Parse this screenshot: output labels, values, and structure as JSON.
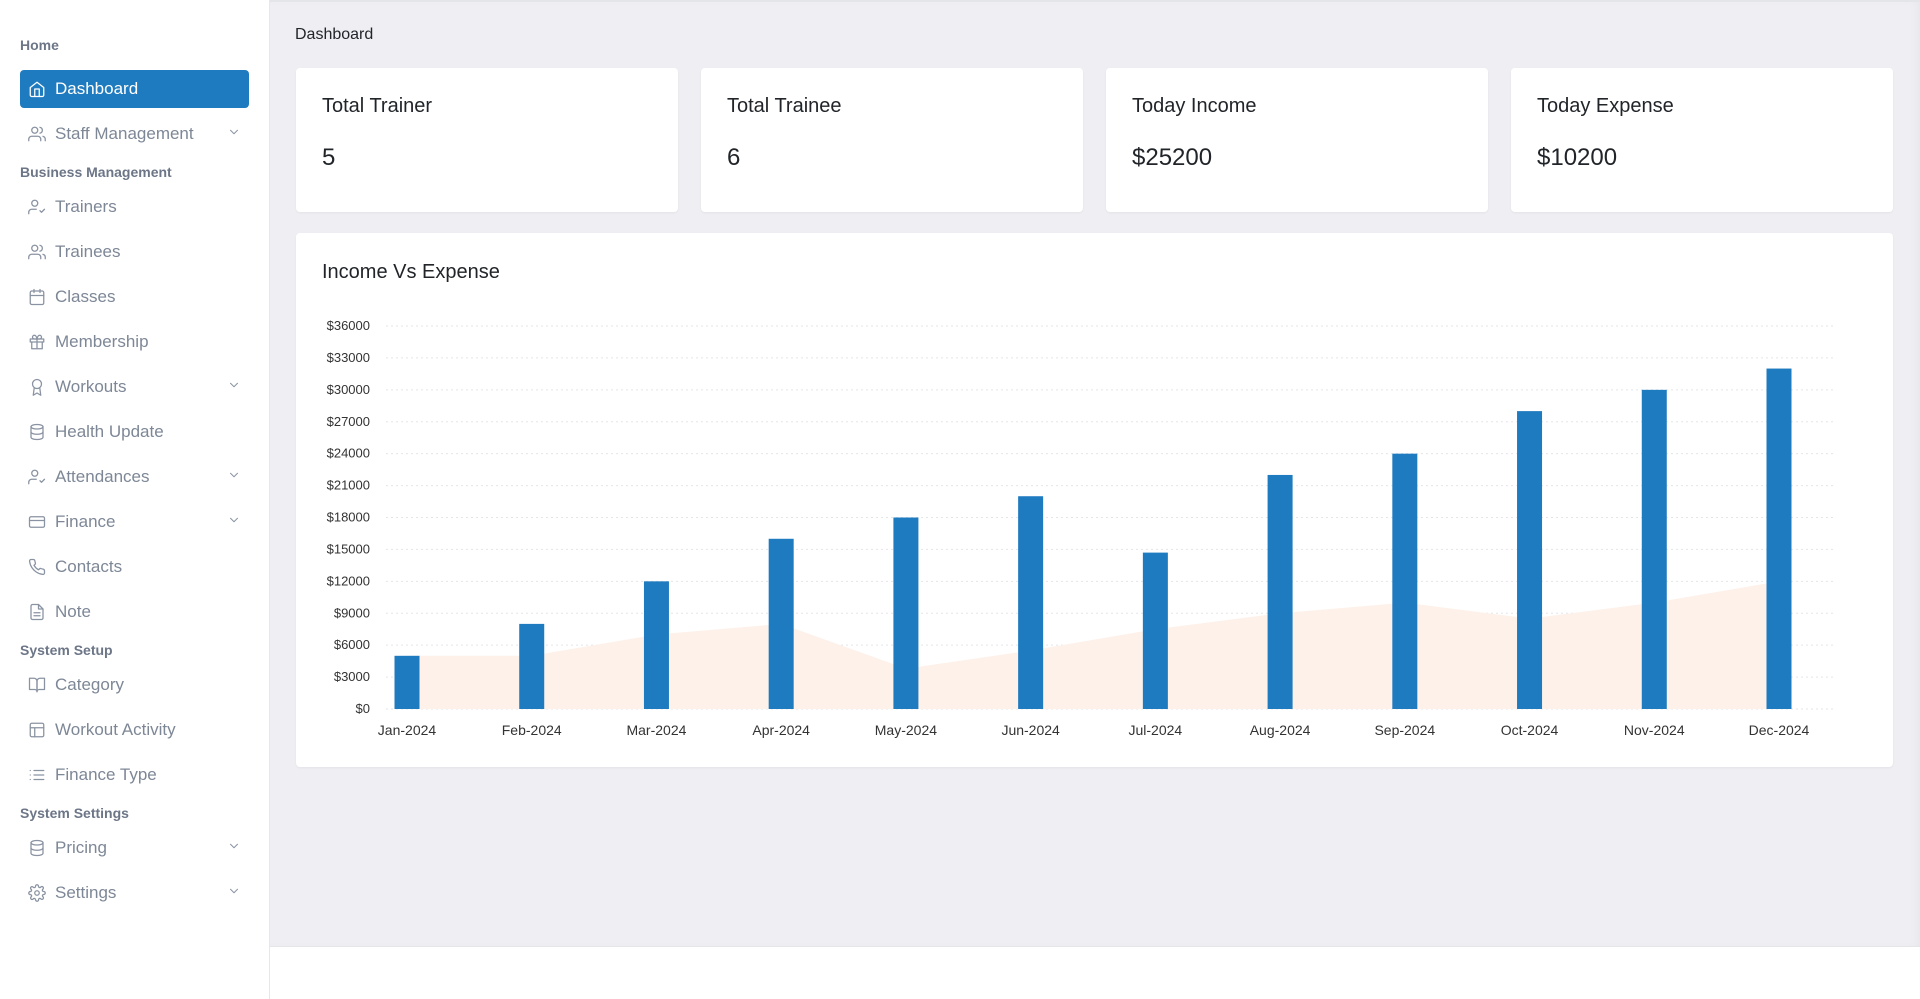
{
  "sidebar": {
    "sections": {
      "home": "Home",
      "business": "Business Management",
      "setup": "System Setup",
      "settings": "System Settings"
    },
    "items": {
      "dashboard": {
        "label": "Dashboard",
        "icon": "home-icon"
      },
      "staff": {
        "label": "Staff Management",
        "icon": "users-icon"
      },
      "trainers": {
        "label": "Trainers",
        "icon": "user-check-icon"
      },
      "trainees": {
        "label": "Trainees",
        "icon": "users-icon"
      },
      "classes": {
        "label": "Classes",
        "icon": "calendar-icon"
      },
      "membership": {
        "label": "Membership",
        "icon": "gift-icon"
      },
      "workouts": {
        "label": "Workouts",
        "icon": "award-icon"
      },
      "health": {
        "label": "Health Update",
        "icon": "database-icon"
      },
      "attendances": {
        "label": "Attendances",
        "icon": "user-check-icon"
      },
      "finance": {
        "label": "Finance",
        "icon": "credit-card-icon"
      },
      "contacts": {
        "label": "Contacts",
        "icon": "phone-icon"
      },
      "note": {
        "label": "Note",
        "icon": "file-icon"
      },
      "category": {
        "label": "Category",
        "icon": "book-open-icon"
      },
      "workout_activity": {
        "label": "Workout Activity",
        "icon": "layout-icon"
      },
      "finance_type": {
        "label": "Finance Type",
        "icon": "list-icon"
      },
      "pricing": {
        "label": "Pricing",
        "icon": "database-icon"
      },
      "settings": {
        "label": "Settings",
        "icon": "gear-icon"
      }
    }
  },
  "breadcrumb": "Dashboard",
  "cards": [
    {
      "title": "Total Trainer",
      "value": "5"
    },
    {
      "title": "Total Trainee",
      "value": "6"
    },
    {
      "title": "Today Income",
      "value": "$25200"
    },
    {
      "title": "Today Expense",
      "value": "$10200"
    }
  ],
  "chart_title": "Income Vs Expense",
  "colors": {
    "accent": "#1f7bbf",
    "income_bar": "#1f7bbf",
    "expense_area": "#fdf1ea"
  },
  "chart_data": {
    "type": "bar",
    "title": "Income Vs Expense",
    "categories": [
      "Jan-2024",
      "Feb-2024",
      "Mar-2024",
      "Apr-2024",
      "May-2024",
      "Jun-2024",
      "Jul-2024",
      "Aug-2024",
      "Sep-2024",
      "Oct-2024",
      "Nov-2024",
      "Dec-2024"
    ],
    "yticks": [
      "$0",
      "$3000",
      "$6000",
      "$9000",
      "$12000",
      "$15000",
      "$18000",
      "$21000",
      "$24000",
      "$27000",
      "$30000",
      "$33000",
      "$36000"
    ],
    "ylim": [
      0,
      36000
    ],
    "grid": true,
    "series": [
      {
        "type": "bar",
        "values": [
          5000,
          8000,
          12000,
          16000,
          18000,
          20000,
          14700,
          22000,
          24000,
          28000,
          30000,
          32000
        ]
      },
      {
        "type": "area",
        "values": [
          5000,
          5000,
          7000,
          8000,
          3800,
          5500,
          7500,
          9000,
          10000,
          8500,
          10000,
          12000
        ]
      }
    ]
  }
}
